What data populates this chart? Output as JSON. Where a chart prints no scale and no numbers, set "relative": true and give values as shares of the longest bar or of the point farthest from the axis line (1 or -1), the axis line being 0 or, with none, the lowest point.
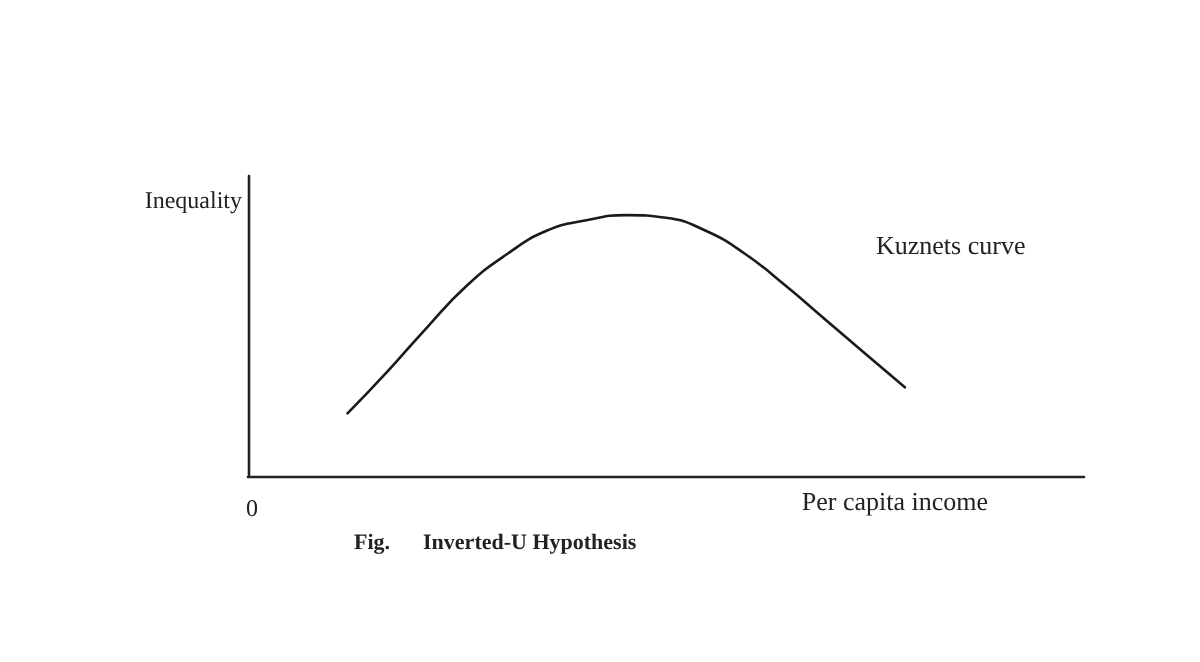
{
  "chart_data": {
    "type": "line",
    "relative": true,
    "title": "Fig.      Inverted-U Hypothesis",
    "xlabel": "Per capita income",
    "ylabel": "Inequality",
    "annotations": [
      "0"
    ],
    "categories": [
      null,
      null,
      null,
      null,
      null,
      null,
      null,
      null,
      null,
      null,
      null,
      null,
      null,
      null,
      null,
      null,
      null,
      null,
      null,
      null,
      null
    ],
    "series": [
      {
        "name": "Kuznets curve",
        "color": "#1a1a1a",
        "values": [
          null,
          null,
          0.24,
          0.4,
          0.57,
          0.73,
          0.85,
          0.94,
          0.98,
          1,
          0.99,
          0.94,
          0.85,
          0.73,
          0.6,
          0.47,
          0.34,
          null,
          null,
          null,
          null
        ]
      }
    ],
    "marker": "none",
    "grid": false,
    "legend": false
  }
}
